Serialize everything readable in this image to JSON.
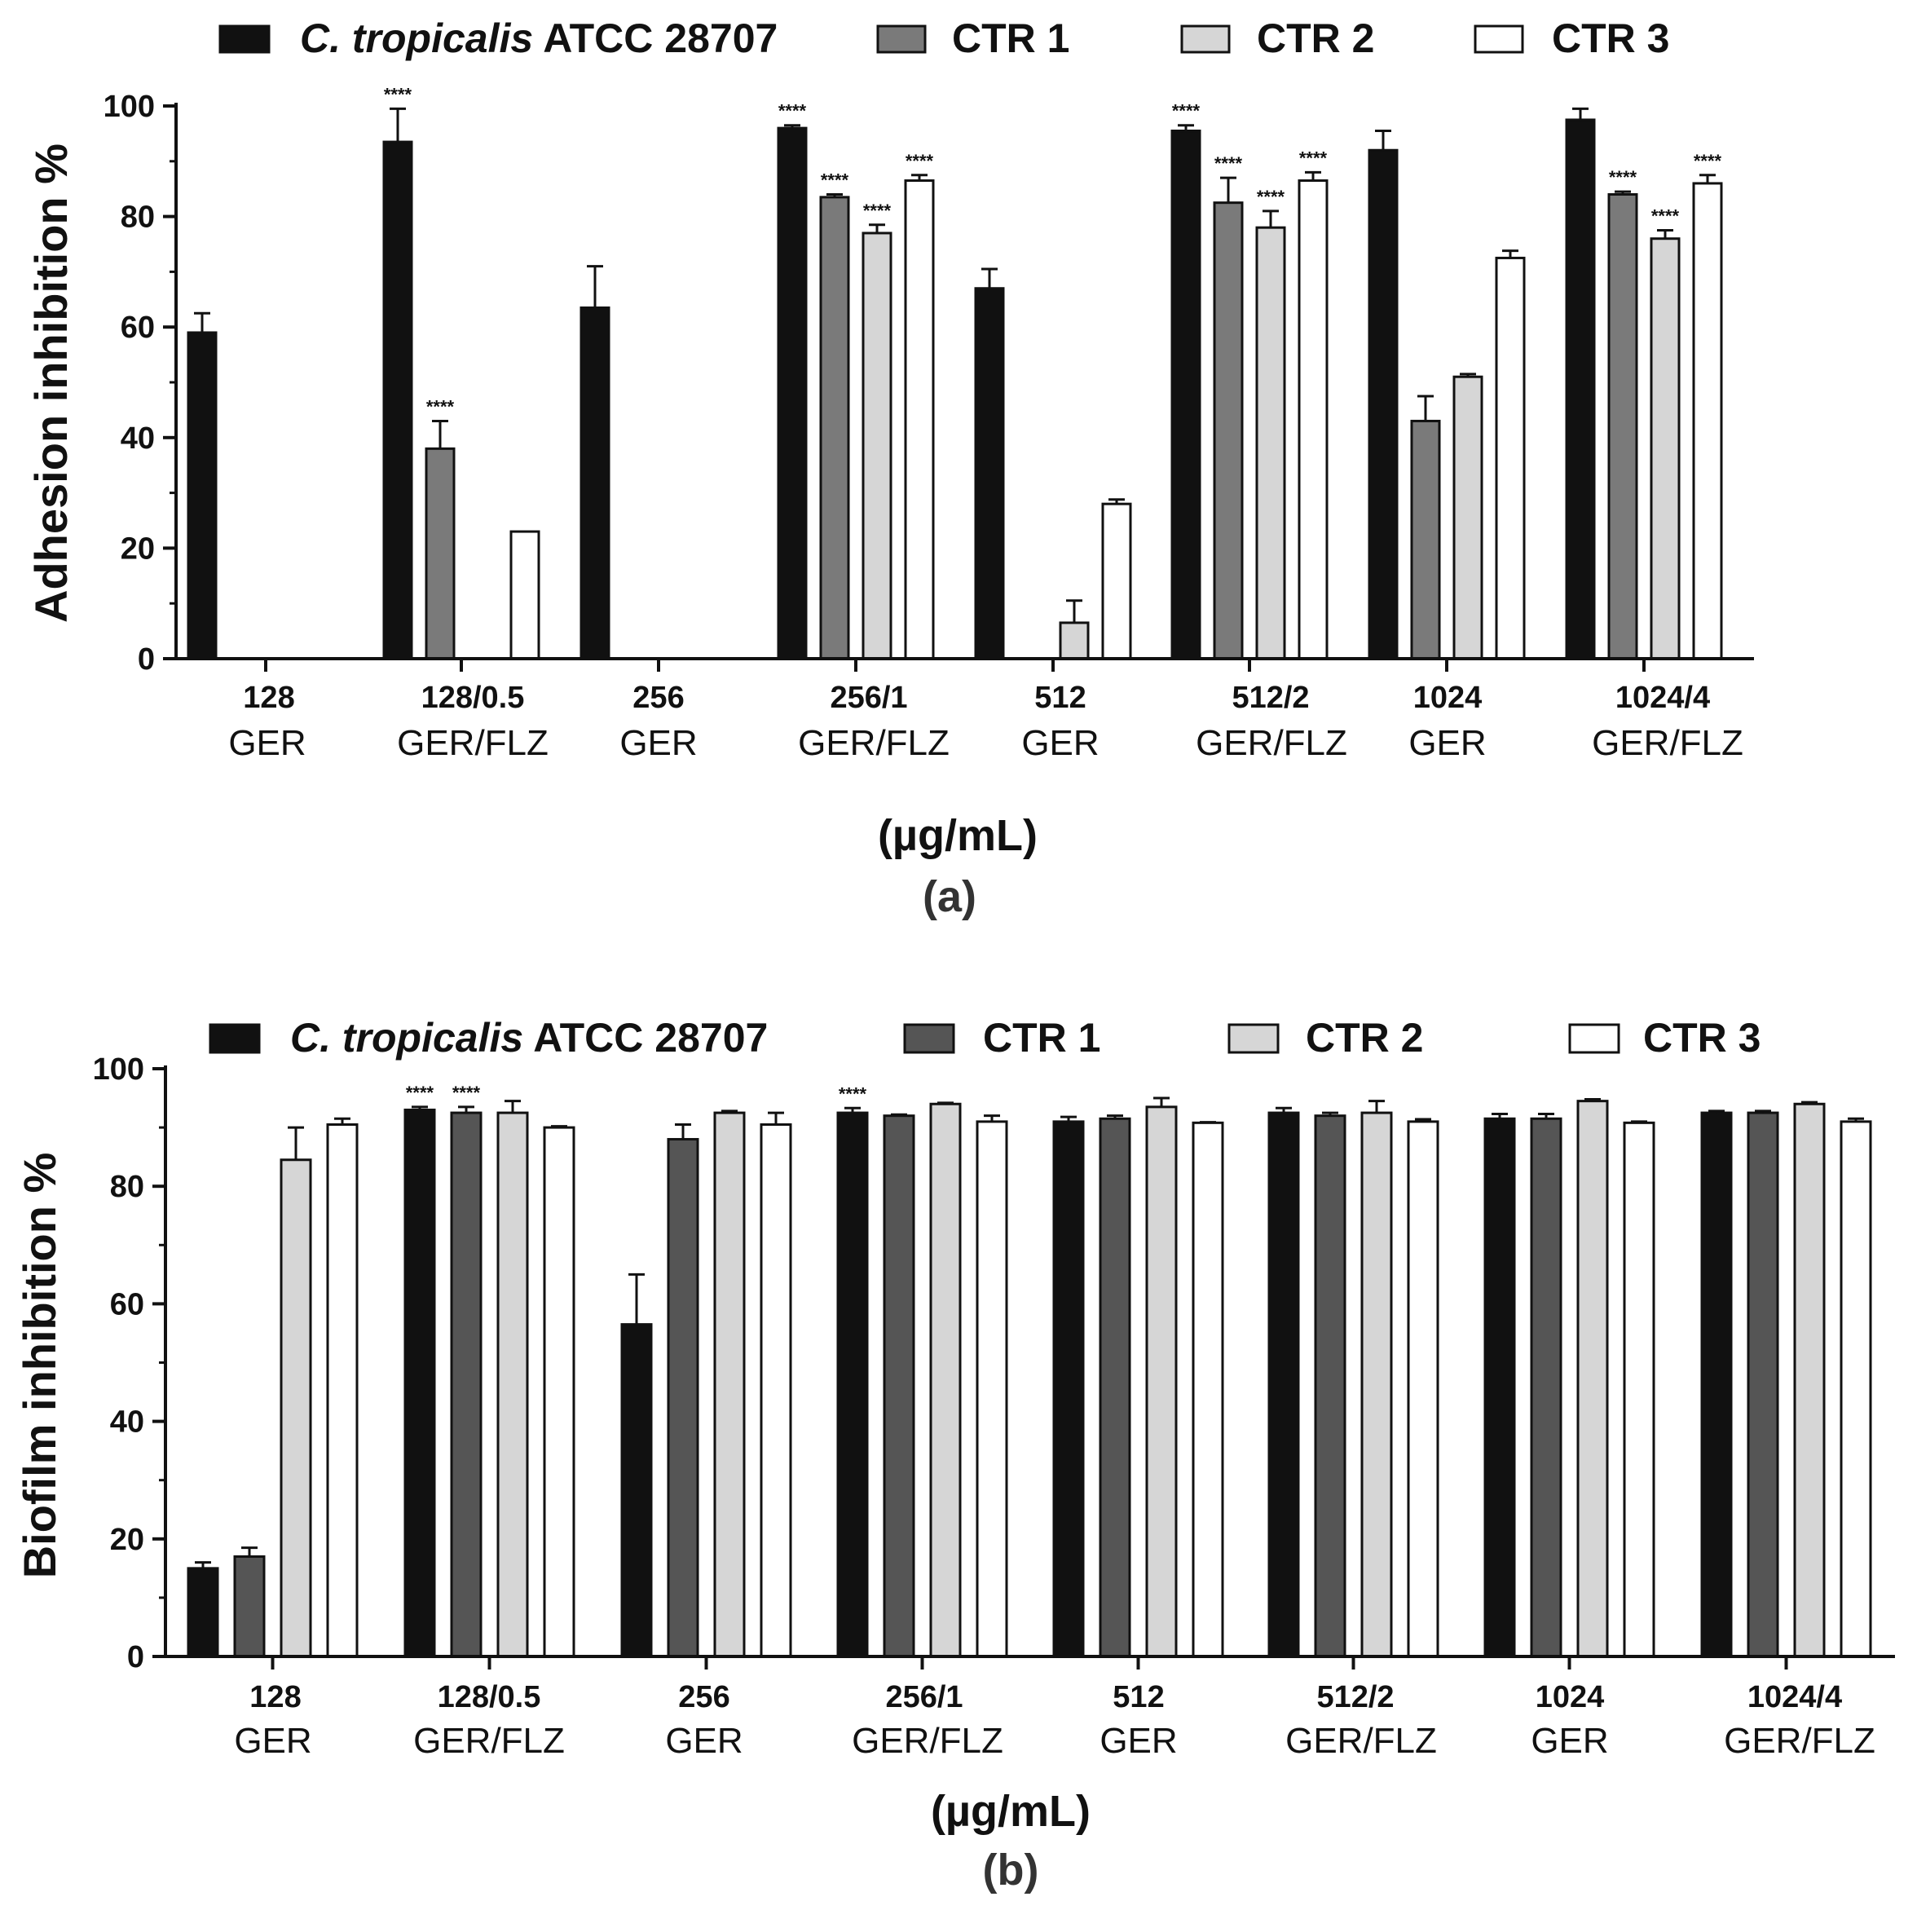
{
  "chart_data": [
    {
      "type": "bar",
      "panel_label": "(a)",
      "ylabel": "Adhesion inhibition %",
      "xlabel": "(µg/mL)",
      "ylim": [
        0,
        100
      ],
      "yticks": [
        0,
        20,
        40,
        60,
        80,
        100
      ],
      "categories": [
        {
          "dose": "128",
          "treatment": "GER"
        },
        {
          "dose": "128/0.5",
          "treatment": "GER/FLZ"
        },
        {
          "dose": "256",
          "treatment": "GER"
        },
        {
          "dose": "256/1",
          "treatment": "GER/FLZ"
        },
        {
          "dose": "512",
          "treatment": "GER"
        },
        {
          "dose": "512/2",
          "treatment": "GER/FLZ"
        },
        {
          "dose": "1024",
          "treatment": "GER"
        },
        {
          "dose": "1024/4",
          "treatment": "GER/FLZ"
        }
      ],
      "legend": [
        {
          "italic": "C. tropicalis",
          "rest": " ATCC 28707"
        },
        {
          "italic": "",
          "rest": "CTR 1"
        },
        {
          "italic": "",
          "rest": "CTR 2"
        },
        {
          "italic": "",
          "rest": "CTR 3"
        }
      ],
      "series": [
        {
          "name": "C. tropicalis ATCC 28707",
          "color": "#111111",
          "values": [
            59,
            93.5,
            63.5,
            96,
            67,
            95.5,
            92,
            97.5
          ],
          "errors": [
            3.5,
            6,
            7.5,
            0.5,
            3.5,
            1,
            3.5,
            2
          ],
          "sig": [
            false,
            true,
            false,
            true,
            false,
            true,
            false,
            false
          ]
        },
        {
          "name": "CTR 1",
          "color": "#7a7a7a",
          "values": [
            0,
            38,
            0,
            83.5,
            0,
            82.5,
            43,
            84
          ],
          "errors": [
            0,
            5,
            0,
            0.5,
            0,
            4.5,
            4.5,
            0.5
          ],
          "sig": [
            false,
            true,
            false,
            true,
            false,
            true,
            false,
            true
          ]
        },
        {
          "name": "CTR 2",
          "color": "#d6d6d6",
          "values": [
            0,
            0,
            0,
            77,
            6.5,
            78,
            51,
            76
          ],
          "errors": [
            0,
            0,
            0,
            1.5,
            4,
            3,
            0.5,
            1.5
          ],
          "sig": [
            false,
            false,
            false,
            true,
            false,
            true,
            false,
            true
          ]
        },
        {
          "name": "CTR 3",
          "color": "#ffffff",
          "values": [
            0,
            23,
            0,
            86.5,
            28,
            86.5,
            72.5,
            86
          ],
          "errors": [
            0,
            0,
            0,
            1,
            0.8,
            1.5,
            1.3,
            1.5
          ],
          "sig": [
            false,
            false,
            false,
            true,
            false,
            true,
            false,
            true
          ]
        }
      ],
      "sig_marker": "****"
    },
    {
      "type": "bar",
      "panel_label": "(b)",
      "ylabel": "Biofilm inhibition %",
      "xlabel": "(µg/mL)",
      "ylim": [
        0,
        100
      ],
      "yticks": [
        0,
        20,
        40,
        60,
        80,
        100
      ],
      "categories": [
        {
          "dose": "128",
          "treatment": "GER"
        },
        {
          "dose": "128/0.5",
          "treatment": "GER/FLZ"
        },
        {
          "dose": "256",
          "treatment": "GER"
        },
        {
          "dose": "256/1",
          "treatment": "GER/FLZ"
        },
        {
          "dose": "512",
          "treatment": "GER"
        },
        {
          "dose": "512/2",
          "treatment": "GER/FLZ"
        },
        {
          "dose": "1024",
          "treatment": "GER"
        },
        {
          "dose": "1024/4",
          "treatment": "GER/FLZ"
        }
      ],
      "legend": [
        {
          "italic": "C. tropicalis",
          "rest": " ATCC 28707"
        },
        {
          "italic": "",
          "rest": "CTR 1"
        },
        {
          "italic": "",
          "rest": "CTR 2"
        },
        {
          "italic": "",
          "rest": "CTR 3"
        }
      ],
      "series": [
        {
          "name": "C. tropicalis ATCC 28707",
          "color": "#111111",
          "values": [
            15,
            93,
            56.5,
            92.5,
            91,
            92.5,
            91.5,
            92.5
          ],
          "errors": [
            1,
            0.5,
            8.5,
            0.8,
            0.8,
            0.8,
            0.8,
            0.3
          ],
          "sig": [
            false,
            true,
            false,
            true,
            false,
            false,
            false,
            false
          ]
        },
        {
          "name": "CTR 1",
          "color": "#555555",
          "values": [
            17,
            92.5,
            88,
            92,
            91.5,
            92,
            91.5,
            92.5
          ],
          "errors": [
            1.5,
            1,
            2.5,
            0.2,
            0.5,
            0.5,
            0.8,
            0.3
          ],
          "sig": [
            false,
            true,
            false,
            false,
            false,
            false,
            false,
            false
          ]
        },
        {
          "name": "CTR 2",
          "color": "#d6d6d6",
          "values": [
            84.5,
            92.5,
            92.5,
            94,
            93.5,
            92.5,
            94.5,
            94
          ],
          "errors": [
            5.5,
            2,
            0.3,
            0.2,
            1.5,
            2,
            0.3,
            0.3
          ],
          "sig": [
            false,
            false,
            false,
            false,
            false,
            false,
            false,
            false
          ]
        },
        {
          "name": "CTR 3",
          "color": "#ffffff",
          "values": [
            90.5,
            90,
            90.5,
            91,
            90.8,
            91,
            90.8,
            91
          ],
          "errors": [
            1,
            0.2,
            2,
            1,
            0.1,
            0.4,
            0.2,
            0.5
          ],
          "sig": [
            false,
            false,
            false,
            false,
            false,
            false,
            false,
            false
          ]
        }
      ],
      "sig_marker": "****"
    }
  ]
}
